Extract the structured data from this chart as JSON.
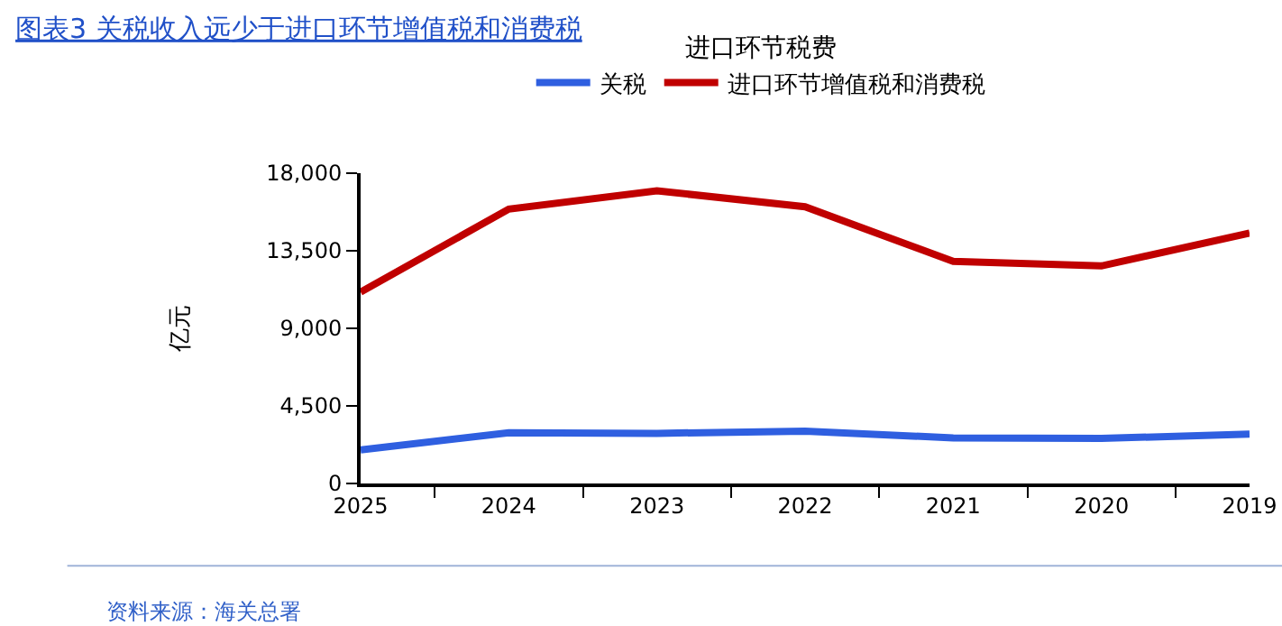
{
  "chart_data": {
    "type": "line",
    "title": "图表3 关税收入远少于进口环节增值税和消费税",
    "ylabel": "亿元",
    "legend_title": "进口环节税费",
    "categories": [
      "2025",
      "2024",
      "2023",
      "2022",
      "2021",
      "2020",
      "2019"
    ],
    "series": [
      {
        "name": "关税",
        "color": "#2f5fe0",
        "values": [
          1950,
          2940,
          2910,
          3040,
          2640,
          2610,
          2870
        ]
      },
      {
        "name": "进口环节增值税和消费税",
        "color": "#c00000",
        "values": [
          11100,
          15920,
          16980,
          16050,
          12880,
          12620,
          14530
        ]
      }
    ],
    "ylim": [
      0,
      18000
    ],
    "yticks": [
      0,
      {
        "value": 4500,
        "label": "4,500"
      },
      {
        "value": 9000,
        "label": "9,000"
      },
      {
        "value": 13500,
        "label": "13,500"
      },
      {
        "value": 18000,
        "label": "18,000"
      }
    ],
    "grid": false,
    "legend": "top",
    "marker": "none",
    "line_style": "solid",
    "annotations": [
      "资料来源：海关总署"
    ]
  }
}
